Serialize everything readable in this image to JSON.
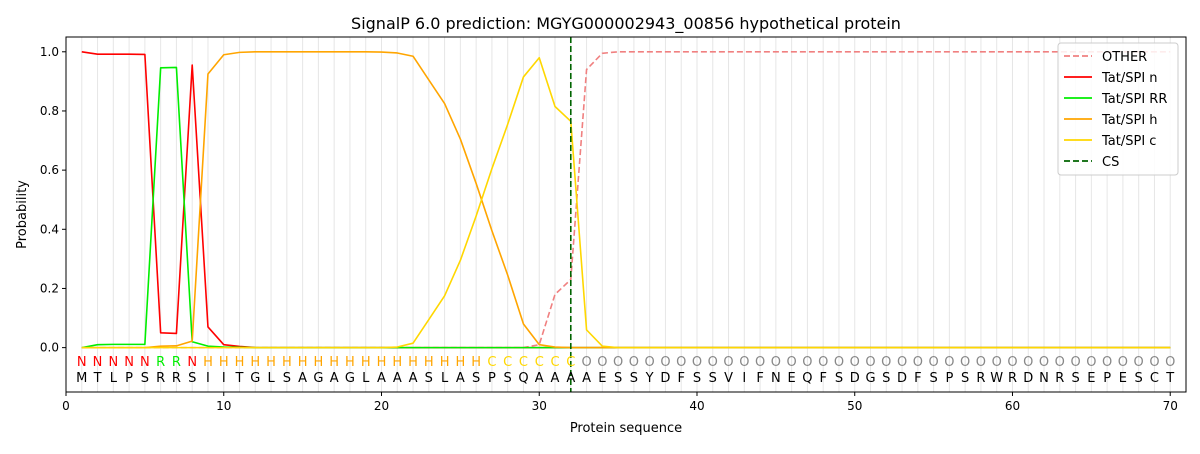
{
  "chart_data": {
    "type": "line",
    "title": "SignalP 6.0 prediction: MGYG000002943_00856 hypothetical protein",
    "xlabel": "Protein sequence",
    "ylabel": "Probability",
    "xlim": [
      0,
      71
    ],
    "ylim": [
      -0.15,
      1.05
    ],
    "x_ticks": [
      0,
      10,
      20,
      30,
      40,
      50,
      60,
      70
    ],
    "y_ticks": [
      0.0,
      0.2,
      0.4,
      0.6,
      0.8,
      1.0
    ],
    "x_tick_labels": [
      "0",
      "10",
      "20",
      "30",
      "40",
      "50",
      "60",
      "70"
    ],
    "y_tick_labels": [
      "0.0",
      "0.2",
      "0.4",
      "0.6",
      "0.8",
      "1.0"
    ],
    "grid": "vertical lines at each residue",
    "legend_position": "top-right",
    "sequence": [
      "M",
      "T",
      "L",
      "P",
      "S",
      "R",
      "R",
      "S",
      "I",
      "I",
      "T",
      "G",
      "L",
      "S",
      "A",
      "G",
      "A",
      "G",
      "L",
      "A",
      "A",
      "A",
      "S",
      "L",
      "A",
      "S",
      "P",
      "S",
      "Q",
      "A",
      "A",
      "A",
      "A",
      "E",
      "S",
      "S",
      "Y",
      "D",
      "F",
      "S",
      "S",
      "V",
      "I",
      "F",
      "N",
      "E",
      "Q",
      "F",
      "S",
      "D",
      "G",
      "S",
      "D",
      "F",
      "S",
      "P",
      "S",
      "R",
      "W",
      "R",
      "D",
      "N",
      "R",
      "S",
      "E",
      "P",
      "E",
      "S",
      "C",
      "T"
    ],
    "labels": [
      "N",
      "N",
      "N",
      "N",
      "N",
      "R",
      "R",
      "N",
      "H",
      "H",
      "H",
      "H",
      "H",
      "H",
      "H",
      "H",
      "H",
      "H",
      "H",
      "H",
      "H",
      "H",
      "H",
      "H",
      "H",
      "H",
      "C",
      "C",
      "C",
      "C",
      "C",
      "C",
      "O",
      "O",
      "O",
      "O",
      "O",
      "O",
      "O",
      "O",
      "O",
      "O",
      "O",
      "O",
      "O",
      "O",
      "O",
      "O",
      "O",
      "O",
      "O",
      "O",
      "O",
      "O",
      "O",
      "O",
      "O",
      "O",
      "O",
      "O",
      "O",
      "O",
      "O",
      "O",
      "O",
      "O",
      "O",
      "O",
      "O",
      "O"
    ],
    "label_colors": {
      "N": "#ff0000",
      "R": "#00ee00",
      "H": "#ffa500",
      "C": "#ffd700",
      "O": "#888888"
    },
    "cleavage_site": 32,
    "series": [
      {
        "name": "OTHER",
        "color": "#f08080",
        "dashed": true,
        "values": [
          0.0,
          0.0,
          0.0,
          0.0,
          0.0,
          0.0,
          0.0,
          0.0,
          0.0,
          0.0,
          0.0,
          0.0,
          0.0,
          0.0,
          0.0,
          0.0,
          0.0,
          0.0,
          0.0,
          0.0,
          0.0,
          0.0,
          0.0,
          0.0,
          0.0,
          0.0,
          0.0,
          0.0,
          0.0,
          0.01,
          0.18,
          0.23,
          0.94,
          0.995,
          1.0,
          1.0,
          1.0,
          1.0,
          1.0,
          1.0,
          1.0,
          1.0,
          1.0,
          1.0,
          1.0,
          1.0,
          1.0,
          1.0,
          1.0,
          1.0,
          1.0,
          1.0,
          1.0,
          1.0,
          1.0,
          1.0,
          1.0,
          1.0,
          1.0,
          1.0,
          1.0,
          1.0,
          1.0,
          1.0,
          1.0,
          1.0,
          1.0,
          1.0,
          1.0,
          1.0
        ]
      },
      {
        "name": "Tat/SPI n",
        "color": "#ff0000",
        "dashed": false,
        "values": [
          1.0,
          0.992,
          0.992,
          0.992,
          0.991,
          0.05,
          0.048,
          0.955,
          0.07,
          0.01,
          0.004,
          0.0,
          0.0,
          0.0,
          0.0,
          0.0,
          0.0,
          0.0,
          0.0,
          0.0,
          0.0,
          0.0,
          0.0,
          0.0,
          0.0,
          0.0,
          0.0,
          0.0,
          0.0,
          0.0,
          0.0,
          0.0,
          0.0,
          0.0,
          0.0,
          0.0,
          0.0,
          0.0,
          0.0,
          0.0,
          0.0,
          0.0,
          0.0,
          0.0,
          0.0,
          0.0,
          0.0,
          0.0,
          0.0,
          0.0,
          0.0,
          0.0,
          0.0,
          0.0,
          0.0,
          0.0,
          0.0,
          0.0,
          0.0,
          0.0,
          0.0,
          0.0,
          0.0,
          0.0,
          0.0,
          0.0,
          0.0,
          0.0,
          0.0,
          0.0
        ]
      },
      {
        "name": "Tat/SPI RR",
        "color": "#00ee00",
        "dashed": false,
        "values": [
          0.0,
          0.01,
          0.011,
          0.011,
          0.011,
          0.946,
          0.947,
          0.02,
          0.005,
          0.002,
          0.001,
          0.0,
          0.0,
          0.0,
          0.0,
          0.0,
          0.0,
          0.0,
          0.0,
          0.0,
          0.0,
          0.0,
          0.0,
          0.0,
          0.0,
          0.0,
          0.0,
          0.0,
          0.0,
          0.0,
          0.0,
          0.0,
          0.0,
          0.0,
          0.0,
          0.0,
          0.0,
          0.0,
          0.0,
          0.0,
          0.0,
          0.0,
          0.0,
          0.0,
          0.0,
          0.0,
          0.0,
          0.0,
          0.0,
          0.0,
          0.0,
          0.0,
          0.0,
          0.0,
          0.0,
          0.0,
          0.0,
          0.0,
          0.0,
          0.0,
          0.0,
          0.0,
          0.0,
          0.0,
          0.0,
          0.0,
          0.0,
          0.0,
          0.0,
          0.0
        ]
      },
      {
        "name": "Tat/SPI h",
        "color": "#ffa500",
        "dashed": false,
        "values": [
          0.0,
          0.0,
          0.0,
          0.0,
          0.0,
          0.005,
          0.006,
          0.022,
          0.925,
          0.99,
          0.998,
          1.0,
          1.0,
          1.0,
          1.0,
          1.0,
          1.0,
          1.0,
          1.0,
          0.999,
          0.996,
          0.985,
          0.905,
          0.825,
          0.705,
          0.555,
          0.395,
          0.245,
          0.08,
          0.01,
          0.002,
          0.0,
          0.0,
          0.0,
          0.0,
          0.0,
          0.0,
          0.0,
          0.0,
          0.0,
          0.0,
          0.0,
          0.0,
          0.0,
          0.0,
          0.0,
          0.0,
          0.0,
          0.0,
          0.0,
          0.0,
          0.0,
          0.0,
          0.0,
          0.0,
          0.0,
          0.0,
          0.0,
          0.0,
          0.0,
          0.0,
          0.0,
          0.0,
          0.0,
          0.0,
          0.0,
          0.0,
          0.0,
          0.0,
          0.0
        ]
      },
      {
        "name": "Tat/SPI c",
        "color": "#ffd700",
        "dashed": false,
        "values": [
          0.0,
          0.0,
          0.0,
          0.0,
          0.0,
          0.0,
          0.0,
          0.0,
          0.0,
          0.0,
          0.0,
          0.0,
          0.0,
          0.0,
          0.0,
          0.0,
          0.0,
          0.0,
          0.0,
          0.0,
          0.002,
          0.015,
          0.095,
          0.175,
          0.295,
          0.445,
          0.605,
          0.755,
          0.915,
          0.98,
          0.815,
          0.765,
          0.06,
          0.005,
          0.0,
          0.0,
          0.0,
          0.0,
          0.0,
          0.0,
          0.0,
          0.0,
          0.0,
          0.0,
          0.0,
          0.0,
          0.0,
          0.0,
          0.0,
          0.0,
          0.0,
          0.0,
          0.0,
          0.0,
          0.0,
          0.0,
          0.0,
          0.0,
          0.0,
          0.0,
          0.0,
          0.0,
          0.0,
          0.0,
          0.0,
          0.0,
          0.0,
          0.0,
          0.0,
          0.0
        ]
      }
    ],
    "cs_series": {
      "name": "CS",
      "color": "#006400",
      "dashed": true
    }
  }
}
